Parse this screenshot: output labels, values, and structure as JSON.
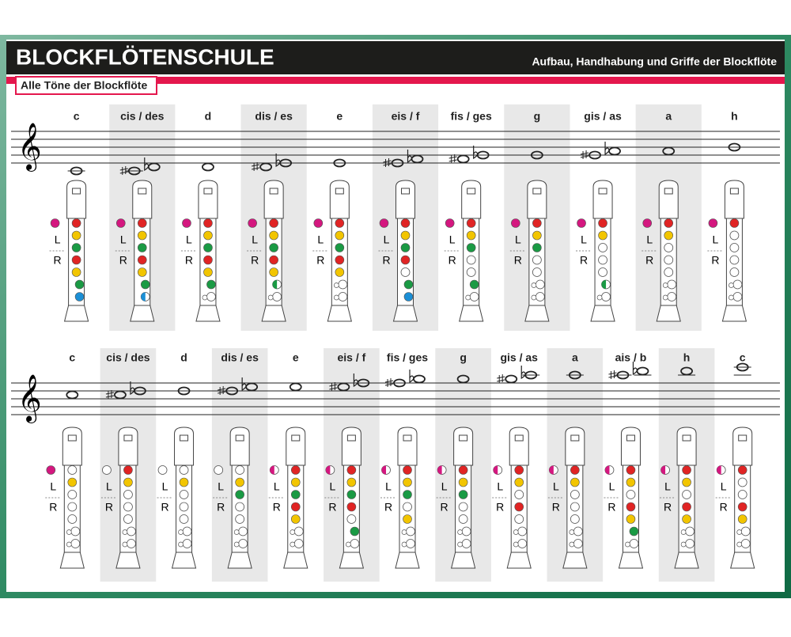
{
  "header": {
    "title": "BLOCKFLÖTENSCHULE",
    "subtitle": "Aufbau, Handhabung und Griffe der Blockflöte"
  },
  "section": {
    "title": "Alle Töne der Blockflöte"
  },
  "hand_labels": [
    "L",
    "R"
  ],
  "thumb_color": "#d4177f",
  "hole_colors": [
    "#e02424",
    "#f2c500",
    "#1a9a44",
    "#e02424",
    "#f2c500",
    "#1a9a44",
    "#1b8fd6"
  ],
  "rows": [
    {
      "notes": [
        {
          "name": "c",
          "thumb": 1,
          "holes": [
            1,
            1,
            1,
            1,
            1,
            1,
            1
          ]
        },
        {
          "name": "cis / des",
          "thumb": 1,
          "holes": [
            1,
            1,
            1,
            1,
            1,
            1,
            0.5
          ]
        },
        {
          "name": "d",
          "thumb": 1,
          "holes": [
            1,
            1,
            1,
            1,
            1,
            1,
            0
          ]
        },
        {
          "name": "dis / es",
          "thumb": 1,
          "holes": [
            1,
            1,
            1,
            1,
            1,
            0.5,
            0
          ]
        },
        {
          "name": "e",
          "thumb": 1,
          "holes": [
            1,
            1,
            1,
            1,
            1,
            0,
            0
          ]
        },
        {
          "name": "eis / f",
          "thumb": 1,
          "holes": [
            1,
            1,
            1,
            1,
            0,
            1,
            1
          ]
        },
        {
          "name": "fis / ges",
          "thumb": 1,
          "holes": [
            1,
            1,
            1,
            0,
            0,
            1,
            0
          ]
        },
        {
          "name": "g",
          "thumb": 1,
          "holes": [
            1,
            1,
            1,
            0,
            0,
            0,
            0
          ]
        },
        {
          "name": "gis / as",
          "thumb": 1,
          "holes": [
            1,
            1,
            0,
            0,
            0,
            0.5,
            0
          ]
        },
        {
          "name": "a",
          "thumb": 1,
          "holes": [
            1,
            1,
            0,
            0,
            0,
            0,
            0
          ]
        },
        {
          "name": "h",
          "thumb": 1,
          "holes": [
            1,
            0,
            0,
            0,
            0,
            0,
            0
          ]
        }
      ]
    },
    {
      "notes": [
        {
          "name": "c",
          "thumb": 1,
          "holes": [
            0,
            1,
            0,
            0,
            0,
            0,
            0
          ]
        },
        {
          "name": "cis / des",
          "thumb": 0,
          "holes": [
            1,
            1,
            0,
            0,
            0,
            0,
            0
          ]
        },
        {
          "name": "d",
          "thumb": 0,
          "holes": [
            0,
            1,
            0,
            0,
            0,
            0,
            0
          ]
        },
        {
          "name": "dis / es",
          "thumb": 0,
          "holes": [
            0,
            1,
            1,
            0,
            0,
            0,
            0
          ]
        },
        {
          "name": "e",
          "thumb": 0.5,
          "holes": [
            1,
            1,
            1,
            1,
            1,
            0,
            0
          ]
        },
        {
          "name": "eis / f",
          "thumb": 0.5,
          "holes": [
            1,
            1,
            1,
            1,
            0,
            1,
            0
          ]
        },
        {
          "name": "fis / ges",
          "thumb": 0.5,
          "holes": [
            1,
            1,
            1,
            0,
            1,
            0,
            0
          ]
        },
        {
          "name": "g",
          "thumb": 0.5,
          "holes": [
            1,
            1,
            1,
            0,
            0,
            0,
            0
          ]
        },
        {
          "name": "gis / as",
          "thumb": 0.5,
          "holes": [
            1,
            1,
            0,
            1,
            0,
            0,
            0
          ]
        },
        {
          "name": "a",
          "thumb": 0.5,
          "holes": [
            1,
            1,
            0,
            0,
            0,
            0,
            0
          ]
        },
        {
          "name": "ais / b",
          "thumb": 0.5,
          "holes": [
            1,
            1,
            0,
            1,
            1,
            1,
            0
          ]
        },
        {
          "name": "h",
          "thumb": 0.5,
          "holes": [
            1,
            1,
            0,
            1,
            1,
            0,
            0
          ]
        },
        {
          "name": "c",
          "thumb": 0.5,
          "holes": [
            1,
            0,
            0,
            1,
            1,
            0,
            0
          ]
        }
      ]
    }
  ]
}
